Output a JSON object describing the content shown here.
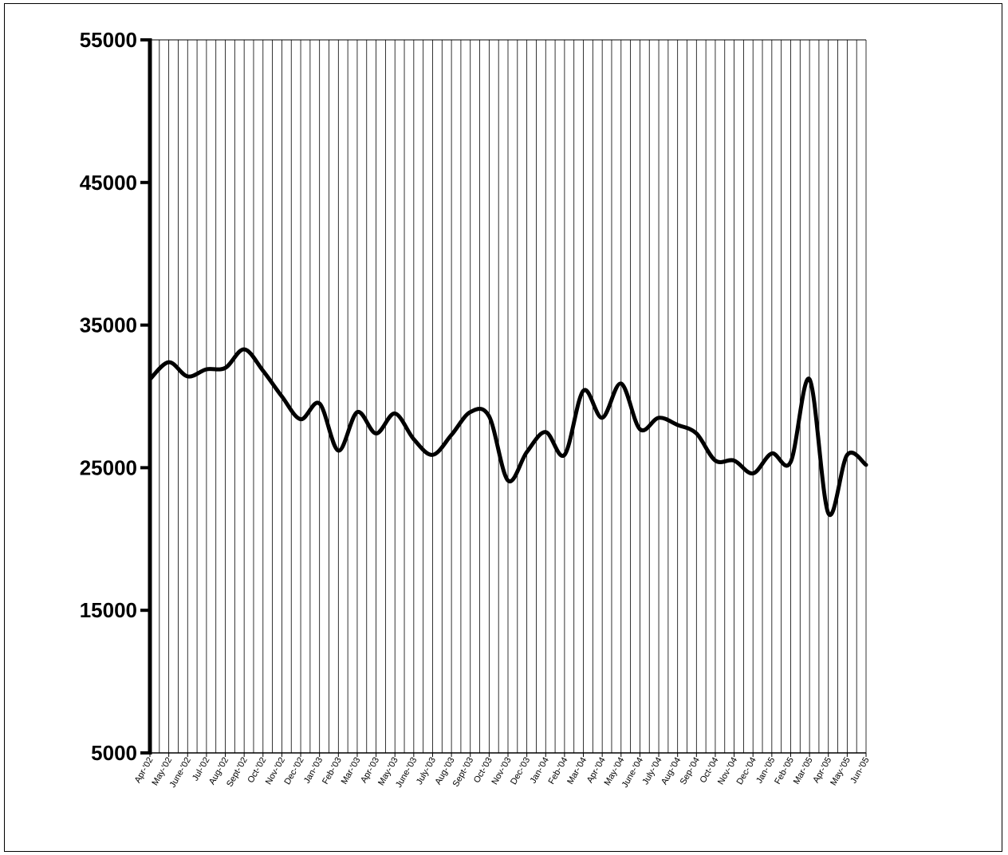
{
  "chart_data": {
    "type": "line",
    "title": "",
    "xlabel": "",
    "ylabel": "",
    "ylim": [
      5000,
      55000
    ],
    "yticks": [
      5000,
      15000,
      25000,
      35000,
      45000,
      55000
    ],
    "grid": "vertical",
    "legend": "none",
    "line_color": "#000000",
    "categories": [
      "Apr-'02",
      "May-'02",
      "June-'02",
      "Jul-'02",
      "Aug-'02",
      "Sept-'02",
      "Oct-'02",
      "Nov-'02",
      "Dec-'02",
      "Jan-'03",
      "Feb-'03",
      "Mar-'03",
      "Apr-'03",
      "May-'03",
      "June-'03",
      "July-'03",
      "Aug-'03",
      "Sept-'03",
      "Oct-'03",
      "Nov-'03",
      "Dec-'03",
      "Jan-'04",
      "Feb-'04",
      "Mar-'04",
      "Apr-'04",
      "May-'04",
      "June-'04",
      "July-'04",
      "Aug-'04",
      "Sep-'04",
      "Oct-'04",
      "Nov-'04",
      "Dec-'04",
      "Jan-'05",
      "Feb-'05",
      "Mar-'05",
      "Apr-'05",
      "May-'05",
      "Jun-'05"
    ],
    "series": [
      {
        "values": [
          31200,
          32400,
          31400,
          31900,
          32000,
          33300,
          31800,
          30000,
          28400,
          29500,
          26200,
          28900,
          27400,
          28800,
          27000,
          25900,
          27300,
          28900,
          28600,
          24100,
          26100,
          27500,
          25900,
          30400,
          28500,
          30900,
          27700,
          28500,
          28000,
          27400,
          25500,
          25500,
          24600,
          26000,
          25400,
          31200,
          21800,
          25900,
          25200
        ]
      }
    ]
  }
}
